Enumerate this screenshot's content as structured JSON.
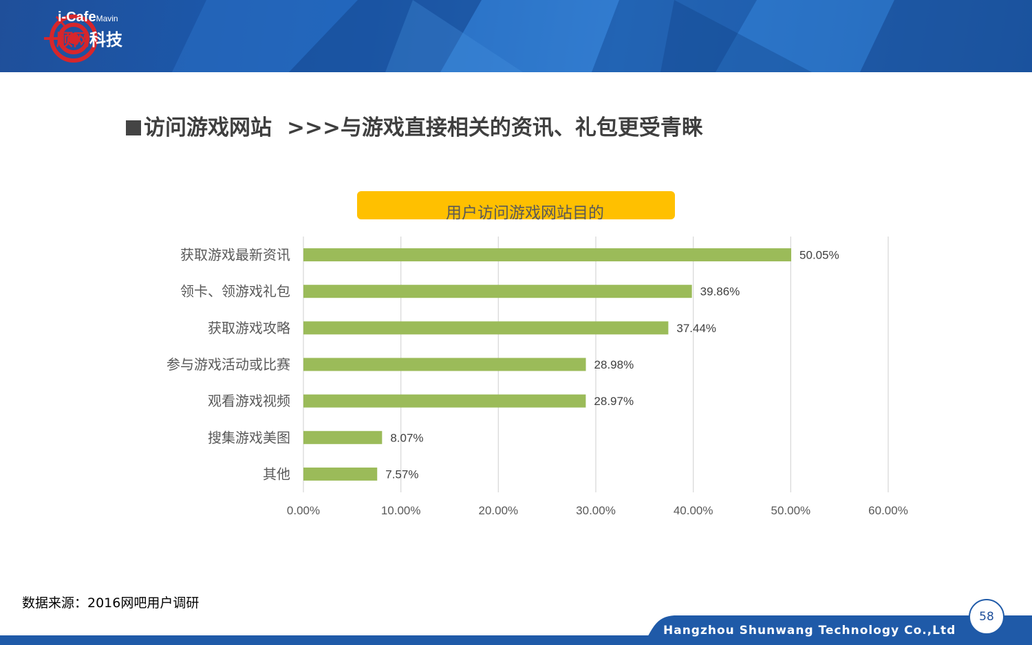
{
  "header": {
    "logo_en": "i-Cafe",
    "logo_en_sub": "Mavin",
    "logo_cn_red": "顺网",
    "logo_cn_white": "科技"
  },
  "slide": {
    "title_main": "访问游戏网站",
    "title_sub": ">>>与游戏直接相关的资讯、礼包更受青睐",
    "source": "数据来源：2016网吧用户调研",
    "company": "Hangzhou Shunwang Technology Co.,Ltd",
    "page_number": "58"
  },
  "colors": {
    "header_blue": "#1f5aa8",
    "bar_green": "#9bbb59",
    "title_box_yellow": "#ffc000",
    "logo_red": "#d7262b"
  },
  "chart_data": {
    "type": "bar",
    "orientation": "horizontal",
    "title": "用户访问游戏网站目的",
    "categories": [
      "获取游戏最新资讯",
      "领卡、领游戏礼包",
      "获取游戏攻略",
      "参与游戏活动或比赛",
      "观看游戏视频",
      "搜集游戏美图",
      "其他"
    ],
    "values": [
      50.05,
      39.86,
      37.44,
      28.98,
      28.97,
      8.07,
      7.57
    ],
    "value_labels": [
      "50.05%",
      "39.86%",
      "37.44%",
      "28.98%",
      "28.97%",
      "8.07%",
      "7.57%"
    ],
    "xlim": [
      0,
      60
    ],
    "x_ticks": [
      0,
      10,
      20,
      30,
      40,
      50,
      60
    ],
    "x_tick_labels": [
      "0.00%",
      "10.00%",
      "20.00%",
      "30.00%",
      "40.00%",
      "50.00%",
      "60.00%"
    ],
    "xlabel": "",
    "ylabel": "",
    "grid": true,
    "legend": "none"
  }
}
